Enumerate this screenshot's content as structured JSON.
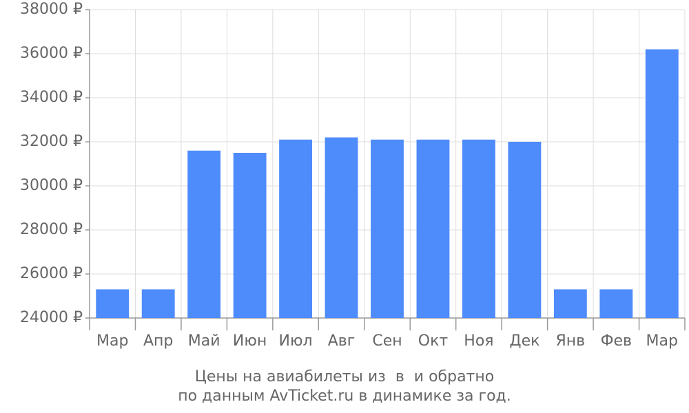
{
  "chart_data": {
    "type": "bar",
    "title": "Цены на авиабилеты из  в  и обратно",
    "subtitle": "по данным AvTicket.ru в динамике за год.",
    "categories": [
      "Мар",
      "Апр",
      "Май",
      "Июн",
      "Июл",
      "Авг",
      "Сен",
      "Окт",
      "Ноя",
      "Дек",
      "Янв",
      "Фев",
      "Мар"
    ],
    "values": [
      25300,
      25300,
      31600,
      31500,
      32100,
      32200,
      32100,
      32100,
      32100,
      32000,
      25300,
      25300,
      36200
    ],
    "color": "#4e8bfb",
    "ylim": [
      24000,
      38000
    ],
    "yticks": [
      {
        "value": 24000,
        "label": "24000 ₽"
      },
      {
        "value": 26000,
        "label": "26000 ₽"
      },
      {
        "value": 28000,
        "label": "28000 ₽"
      },
      {
        "value": 30000,
        "label": "30000 ₽"
      },
      {
        "value": 32000,
        "label": "32000 ₽"
      },
      {
        "value": 34000,
        "label": "34000 ₽"
      },
      {
        "value": 36000,
        "label": "36000 ₽"
      },
      {
        "value": 38000,
        "label": "38000 ₽"
      }
    ],
    "grid": true
  }
}
